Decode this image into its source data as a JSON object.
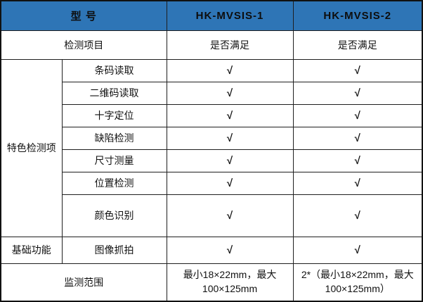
{
  "table": {
    "header": {
      "model_label": "型 号",
      "product1": "HK-MVSIS-1",
      "product2": "HK-MVSIS-2"
    },
    "subheader": {
      "label": "检测项目",
      "product1": "是否满足",
      "product2": "是否满足"
    },
    "groups": [
      {
        "name": "特色检测项",
        "rows": [
          {
            "label": "条码读取",
            "product1": "√",
            "product2": "√"
          },
          {
            "label": "二维码读取",
            "product1": "√",
            "product2": "√"
          },
          {
            "label": "十字定位",
            "product1": "√",
            "product2": "√"
          },
          {
            "label": "缺陷检测",
            "product1": "√",
            "product2": "√"
          },
          {
            "label": "尺寸测量",
            "product1": "√",
            "product2": "√"
          },
          {
            "label": "位置检测",
            "product1": "√",
            "product2": "√"
          },
          {
            "label": "颜色识别",
            "product1": "√",
            "product2": "√"
          }
        ]
      },
      {
        "name": "基础功能",
        "rows": [
          {
            "label": "图像抓拍",
            "product1": "√",
            "product2": "√"
          }
        ]
      }
    ],
    "footer": {
      "label": "监测范围",
      "product1": "最小18×22mm，最大100×125mm",
      "product2": "2*（最小18×22mm，最大100×125mm）"
    }
  },
  "colors": {
    "header_bg": "#2E75B6",
    "border": "#1f1f1f",
    "text": "#111111"
  }
}
